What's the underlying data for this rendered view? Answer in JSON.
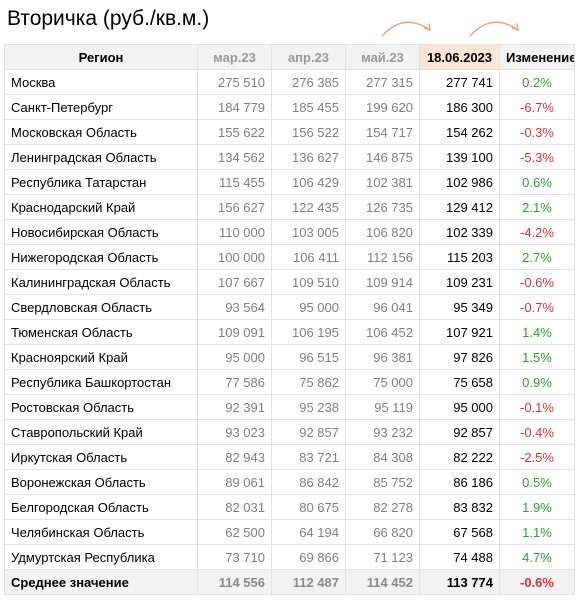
{
  "title": "Вторичка (руб./кв.м.)",
  "colors": {
    "positive": "#2ea12e",
    "negative": "#e03030",
    "accent": "#fbe5d6",
    "arrow": "#e8a87c"
  },
  "columns": [
    "Регион",
    "мар.23",
    "апр.23",
    "май.23",
    "18.06.2023",
    "Изменение"
  ],
  "rows": [
    {
      "region": "Москва",
      "m1": "275 510",
      "m2": "276 385",
      "m3": "277 315",
      "cur": "277 741",
      "chg": "0.2%"
    },
    {
      "region": "Санкт-Петербург",
      "m1": "184 779",
      "m2": "185 455",
      "m3": "199 620",
      "cur": "186 300",
      "chg": "-6.7%"
    },
    {
      "region": "Московская Область",
      "m1": "155 622",
      "m2": "156 522",
      "m3": "154 717",
      "cur": "154 262",
      "chg": "-0.3%"
    },
    {
      "region": "Ленинградская Область",
      "m1": "134 562",
      "m2": "136 627",
      "m3": "146 875",
      "cur": "139 100",
      "chg": "-5.3%"
    },
    {
      "region": "Республика Татарстан",
      "m1": "115 455",
      "m2": "106 429",
      "m3": "102 381",
      "cur": "102 986",
      "chg": "0.6%"
    },
    {
      "region": "Краснодарский Край",
      "m1": "156 627",
      "m2": "122 435",
      "m3": "126 735",
      "cur": "129 412",
      "chg": "2.1%"
    },
    {
      "region": "Новосибирская Область",
      "m1": "110 000",
      "m2": "103 005",
      "m3": "106 820",
      "cur": "102 339",
      "chg": "-4.2%"
    },
    {
      "region": "Нижегородская Область",
      "m1": "100 000",
      "m2": "106 411",
      "m3": "112 156",
      "cur": "115 203",
      "chg": "2.7%"
    },
    {
      "region": "Калининградская Область",
      "m1": "107 667",
      "m2": "109 510",
      "m3": "109 914",
      "cur": "109 231",
      "chg": "-0.6%"
    },
    {
      "region": "Свердловская Область",
      "m1": "93 564",
      "m2": "95 000",
      "m3": "96 041",
      "cur": "95 349",
      "chg": "-0.7%"
    },
    {
      "region": "Тюменская Область",
      "m1": "109 091",
      "m2": "106 195",
      "m3": "106 452",
      "cur": "107 921",
      "chg": "1.4%"
    },
    {
      "region": "Красноярский Край",
      "m1": "95 000",
      "m2": "96 515",
      "m3": "96 381",
      "cur": "97 826",
      "chg": "1.5%"
    },
    {
      "region": "Республика Башкортостан",
      "m1": "77 586",
      "m2": "75 862",
      "m3": "75 000",
      "cur": "75 658",
      "chg": "0.9%"
    },
    {
      "region": "Ростовская Область",
      "m1": "92 391",
      "m2": "95 238",
      "m3": "95 119",
      "cur": "95 000",
      "chg": "-0.1%"
    },
    {
      "region": "Ставропольский Край",
      "m1": "93 023",
      "m2": "92 857",
      "m3": "93 232",
      "cur": "92 857",
      "chg": "-0.4%"
    },
    {
      "region": "Иркутская Область",
      "m1": "82 943",
      "m2": "83 721",
      "m3": "84 308",
      "cur": "82 222",
      "chg": "-2.5%"
    },
    {
      "region": "Воронежская Область",
      "m1": "89 061",
      "m2": "86 842",
      "m3": "85 752",
      "cur": "86 186",
      "chg": "0.5%"
    },
    {
      "region": "Белгородская Область",
      "m1": "82 031",
      "m2": "80 675",
      "m3": "82 278",
      "cur": "83 832",
      "chg": "1.9%"
    },
    {
      "region": "Челябинская Область",
      "m1": "62 500",
      "m2": "64 194",
      "m3": "66 820",
      "cur": "67 568",
      "chg": "1.1%"
    },
    {
      "region": "Удмуртская Республика",
      "m1": "73 710",
      "m2": "69 866",
      "m3": "71 123",
      "cur": "74 488",
      "chg": "4.7%"
    }
  ],
  "average": {
    "region": "Среднее значение",
    "m1": "114 556",
    "m2": "112 487",
    "m3": "114 452",
    "cur": "113 774",
    "chg": "-0.6%"
  }
}
